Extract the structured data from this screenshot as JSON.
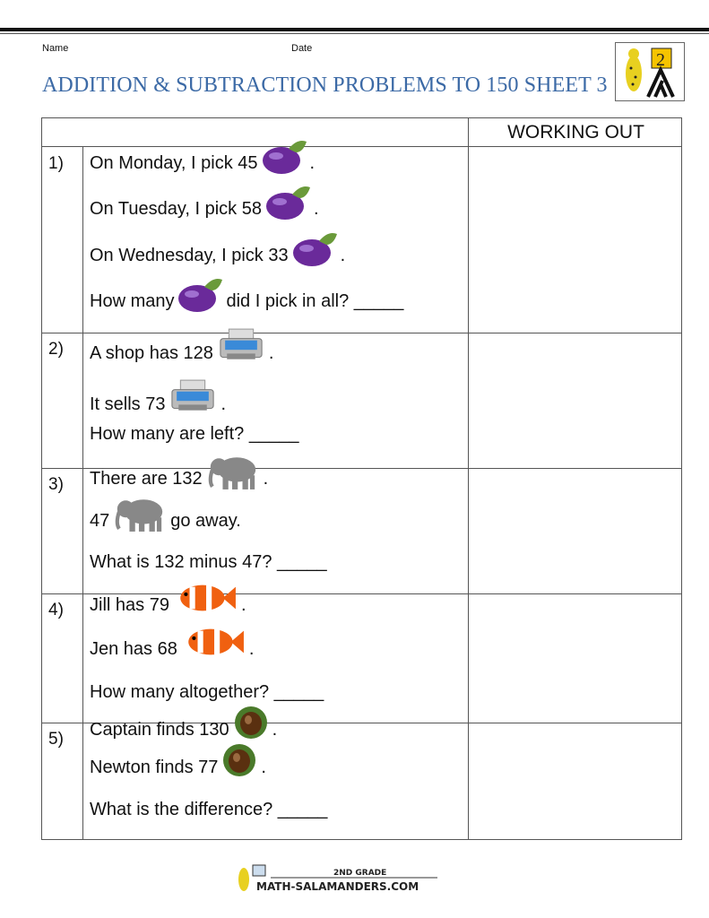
{
  "header": {
    "name_label": "Name",
    "date_label": "Date",
    "title": "ADDITION & SUBTRACTION PROBLEMS TO 150 SHEET 3",
    "logo_text": "2"
  },
  "table": {
    "working_out_header": "WORKING OUT"
  },
  "problems": [
    {
      "number": "1)",
      "lines": [
        {
          "before": "On Monday, I pick 45",
          "icon": "eggplant",
          "after": "."
        },
        {
          "before": "On Tuesday, I pick 58",
          "icon": "eggplant",
          "after": "."
        },
        {
          "before": "On Wednesday, I pick 33",
          "icon": "eggplant",
          "after": "."
        },
        {
          "before": "How many",
          "icon": "eggplant",
          "after": "did I pick in all? _____"
        }
      ]
    },
    {
      "number": "2)",
      "lines": [
        {
          "before": "A shop has 128",
          "icon": "printer",
          "after": "."
        },
        {
          "before": "It sells 73",
          "icon": "printer",
          "after": "."
        },
        {
          "before": "How many are left? _____",
          "icon": "",
          "after": ""
        }
      ]
    },
    {
      "number": "3)",
      "lines": [
        {
          "before": "There are 132",
          "icon": "elephant",
          "after": "."
        },
        {
          "before": "47",
          "icon": "elephant",
          "after": "go away."
        },
        {
          "before": "What is 132 minus 47? _____",
          "icon": "",
          "after": ""
        }
      ]
    },
    {
      "number": "4)",
      "lines": [
        {
          "before": "Jill has 79",
          "icon": "clownfish",
          "after": "."
        },
        {
          "before": "Jen has 68",
          "icon": "clownfish",
          "after": "."
        },
        {
          "before": "How many altogether? _____",
          "icon": "",
          "after": ""
        }
      ]
    },
    {
      "number": "5)",
      "lines": [
        {
          "before": "Captain finds 130",
          "icon": "chestnut",
          "after": "."
        },
        {
          "before": "Newton finds 77",
          "icon": "chestnut",
          "after": "."
        },
        {
          "before": "What is the difference? _____",
          "icon": "",
          "after": ""
        }
      ]
    }
  ],
  "footer": {
    "grade": "2ND GRADE",
    "site": "MATH-SALAMANDERS.COM"
  },
  "colors": {
    "title": "#3c6aa6",
    "eggplant": "#6a2a9a",
    "fish": "#f06010",
    "chestnut": "#5a3010"
  }
}
